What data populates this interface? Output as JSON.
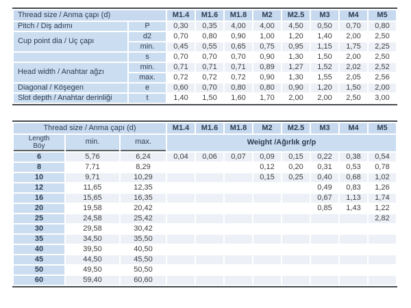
{
  "colors": {
    "header_bg": "#c6d9ee",
    "label_bg": "#cbddf0",
    "stripe_bg": "#edf1f7",
    "rule_dark": "#43474c",
    "label_text": "#2c3b52",
    "value_text": "#3b3b3b"
  },
  "sizes": [
    "M1.4",
    "M1.6",
    "M1.8",
    "M2",
    "M2.5",
    "M3",
    "M4",
    "M5"
  ],
  "table1": {
    "header_label": "Thread size / Anma çapı (d)",
    "rows": [
      {
        "label": "Pitch / Diş adımı",
        "rowspan": 1,
        "sub": "P",
        "shaded": true,
        "values": [
          "0,30",
          "0,35",
          "4,00",
          "4,00",
          "4,50",
          "0,50",
          "0,70",
          "0,80"
        ]
      },
      {
        "label": "Cup point dia / Uç çapı",
        "rowspan": 2,
        "sub": "d2",
        "shaded": false,
        "values": [
          "0,70",
          "0,80",
          "0,90",
          "1,00",
          "1,20",
          "1,40",
          "2,00",
          "2,50"
        ]
      },
      {
        "sub": "min.",
        "shaded": true,
        "values": [
          "0,45",
          "0,55",
          "0,65",
          "0,75",
          "0,95",
          "1,15",
          "1,75",
          "2,25"
        ]
      },
      {
        "label": "",
        "rowspan": 1,
        "sub": "s",
        "shaded": false,
        "values": [
          "0,70",
          "0,70",
          "0,70",
          "0,90",
          "1,30",
          "1,50",
          "2,00",
          "2,50"
        ]
      },
      {
        "label": "Head width / Anahtar ağzı",
        "rowspan": 2,
        "sub": "min.",
        "shaded": true,
        "values": [
          "0,71",
          "0,71",
          "0,71",
          "0,89",
          "1,27",
          "1,52",
          "2,02",
          "2,52"
        ]
      },
      {
        "sub": "max.",
        "shaded": false,
        "values": [
          "0,72",
          "0,72",
          "0,72",
          "0,90",
          "1,30",
          "1,55",
          "2,05",
          "2,56"
        ]
      },
      {
        "label": "Diagonal / Köşegen",
        "rowspan": 1,
        "sub": "e",
        "shaded": true,
        "values": [
          "0,60",
          "0,70",
          "0,80",
          "0,80",
          "0,90",
          "1,20",
          "1,50",
          "2,00"
        ]
      },
      {
        "label": "Slot depth / Anahtar derinliği",
        "rowspan": 1,
        "sub": "t",
        "shaded": false,
        "values": [
          "1,40",
          "1,50",
          "1,60",
          "1,70",
          "2,00",
          "2,00",
          "2,50",
          "3,00"
        ]
      }
    ]
  },
  "table2": {
    "header_label": "Thread size / Anma çapı (d)",
    "length_header_line1": "Length",
    "length_header_line2": "Böy",
    "min_header": "min.",
    "max_header": "max.",
    "weight_header": "Weight /Ağırlık gr/p",
    "rows": [
      {
        "length": "6",
        "min": "5,76",
        "max": "6,24",
        "shaded": true,
        "weights": [
          "0,04",
          "0,06",
          "0,07",
          "0,09",
          "0,15",
          "0,22",
          "0,38",
          "0,54"
        ]
      },
      {
        "length": "8",
        "min": "7,71",
        "max": "8,29",
        "shaded": false,
        "weights": [
          "",
          "",
          "",
          "0,12",
          "0,20",
          "0,31",
          "0,53",
          "0,78"
        ]
      },
      {
        "length": "10",
        "min": "9,71",
        "max": "10,29",
        "shaded": true,
        "weights": [
          "",
          "",
          "",
          "0,15",
          "0,25",
          "0,40",
          "0,68",
          "1,02"
        ]
      },
      {
        "length": "12",
        "min": "11,65",
        "max": "12,35",
        "shaded": false,
        "weights": [
          "",
          "",
          "",
          "",
          "",
          "0,49",
          "0,83",
          "1,26"
        ]
      },
      {
        "length": "16",
        "min": "15,65",
        "max": "16,35",
        "shaded": true,
        "weights": [
          "",
          "",
          "",
          "",
          "",
          "0,67",
          "1,13",
          "1,74"
        ]
      },
      {
        "length": "20",
        "min": "19,58",
        "max": "20,42",
        "shaded": false,
        "weights": [
          "",
          "",
          "",
          "",
          "",
          "0,85",
          "1,43",
          "1,22"
        ]
      },
      {
        "length": "25",
        "min": "24,58",
        "max": "25,42",
        "shaded": true,
        "weights": [
          "",
          "",
          "",
          "",
          "",
          "",
          "",
          "2,82"
        ]
      },
      {
        "length": "30",
        "min": "29,58",
        "max": "30,42",
        "shaded": false,
        "weights": [
          "",
          "",
          "",
          "",
          "",
          "",
          "",
          ""
        ]
      },
      {
        "length": "35",
        "min": "34,50",
        "max": "35,50",
        "shaded": true,
        "weights": [
          "",
          "",
          "",
          "",
          "",
          "",
          "",
          ""
        ]
      },
      {
        "length": "40",
        "min": "39,50",
        "max": "40,50",
        "shaded": false,
        "weights": [
          "",
          "",
          "",
          "",
          "",
          "",
          "",
          ""
        ]
      },
      {
        "length": "45",
        "min": "44,50",
        "max": "45,50",
        "shaded": true,
        "weights": [
          "",
          "",
          "",
          "",
          "",
          "",
          "",
          ""
        ]
      },
      {
        "length": "50",
        "min": "49,50",
        "max": "50,50",
        "shaded": false,
        "weights": [
          "",
          "",
          "",
          "",
          "",
          "",
          "",
          ""
        ]
      },
      {
        "length": "60",
        "min": "59,40",
        "max": "60,60",
        "shaded": true,
        "weights": [
          "",
          "",
          "",
          "",
          "",
          "",
          "",
          ""
        ]
      }
    ]
  }
}
